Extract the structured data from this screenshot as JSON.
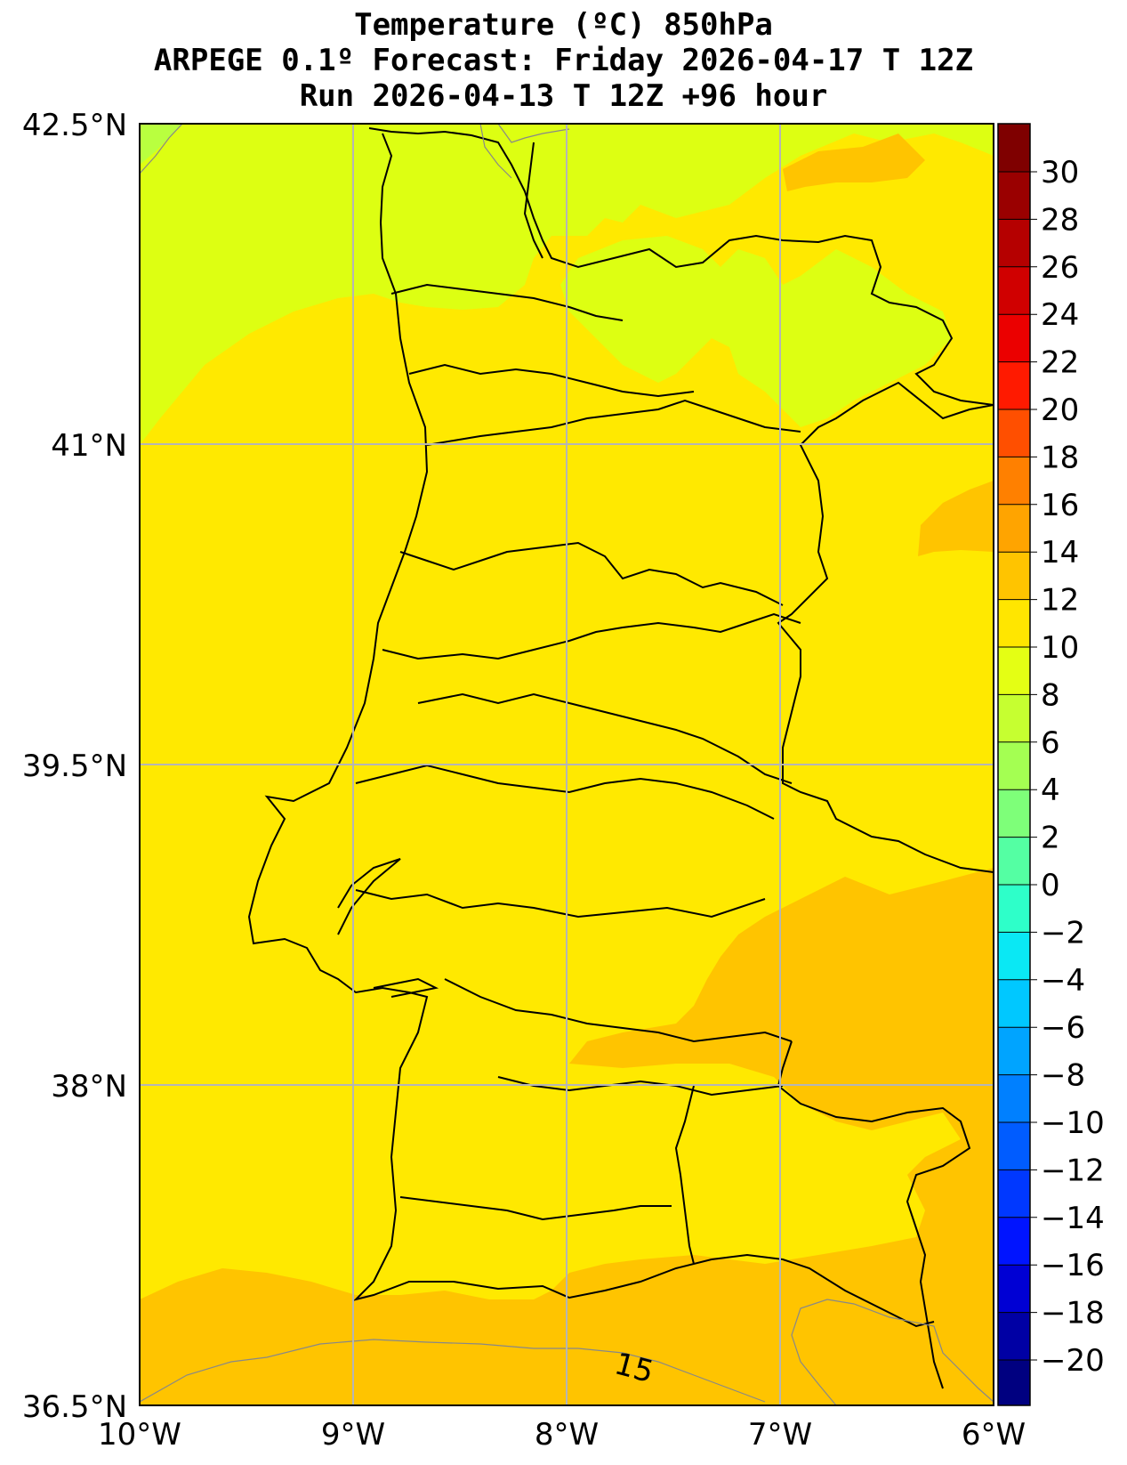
{
  "title": {
    "line1": "Temperature (ºC) 850hPa",
    "line2": "ARPEGE 0.1º Forecast: Friday 2026-04-17 T 12Z",
    "line3": "Run 2026-04-13 T 12Z +96 hour"
  },
  "map": {
    "lon_range": [
      -10,
      -6
    ],
    "lat_range": [
      36.5,
      42.5
    ],
    "grid": true,
    "lat_ticks": [
      "42.5°N",
      "41°N",
      "39.5°N",
      "38°N",
      "36.5°N"
    ],
    "lon_ticks": [
      "10°W",
      "9°W",
      "8°W",
      "7°W",
      "6°W"
    ],
    "contour_label": "15"
  },
  "colorbar": {
    "ticks": [
      "30",
      "28",
      "26",
      "24",
      "22",
      "20",
      "18",
      "16",
      "14",
      "12",
      "10",
      "8",
      "6",
      "4",
      "2",
      "0",
      "−2",
      "−4",
      "−6",
      "−8",
      "−10",
      "−12",
      "−14",
      "−16",
      "−18",
      "−20"
    ],
    "colors": [
      "#7f0000",
      "#9a0000",
      "#b50000",
      "#d00000",
      "#eb0000",
      "#ff1a00",
      "#ff4f00",
      "#ff8000",
      "#ffa400",
      "#ffc400",
      "#ffe600",
      "#e4ff14",
      "#c6ff30",
      "#a4ff52",
      "#7eff79",
      "#54ffa3",
      "#2effc9",
      "#0ae8f4",
      "#00c8ff",
      "#00a4ff",
      "#0080ff",
      "#005cff",
      "#0038ff",
      "#0014ff",
      "#0000d4",
      "#0000a4",
      "#000080"
    ]
  },
  "colors": {
    "t10_12": "#ddff12",
    "t12_14": "#ffe900",
    "t14_16": "#ffc400",
    "t8_10": "#b9ff3f"
  }
}
